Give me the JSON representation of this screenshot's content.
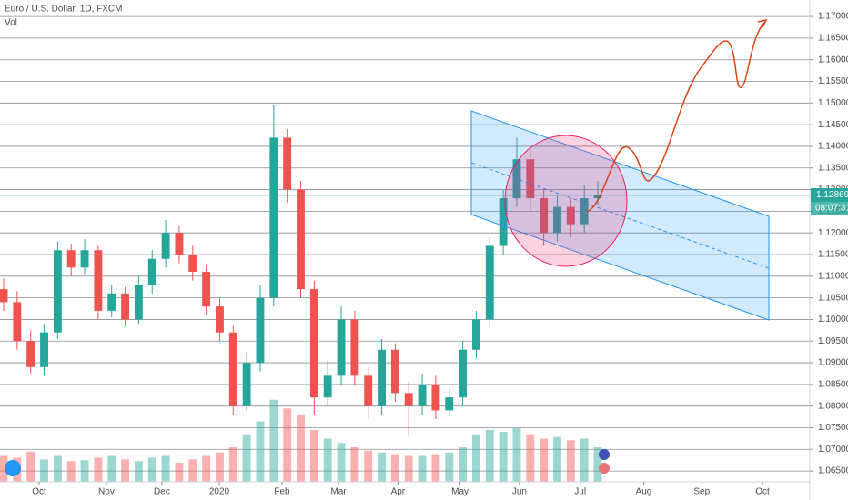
{
  "chart_data": {
    "type": "candlestick",
    "title": "Euro / U.S. Dollar, 1D, FXCM",
    "volume_label": "Vol",
    "last_price_label": "1.12869",
    "countdown": "08:07:31",
    "up_color": "#26a69a",
    "down_color": "#ef5350",
    "open": [
      1.107,
      1.104,
      1.095,
      1.089,
      1.097,
      1.116,
      1.112,
      1.116,
      1.102,
      1.106,
      1.1,
      1.108,
      1.114,
      1.12,
      1.115,
      1.111,
      1.103,
      1.097,
      1.08,
      1.09,
      1.105,
      1.142,
      1.13,
      1.107,
      1.082,
      1.087,
      1.1,
      1.087,
      1.08,
      1.093,
      1.083,
      1.08,
      1.085,
      1.079,
      1.082,
      1.093,
      1.1,
      1.117,
      1.128,
      1.137,
      1.128,
      1.12,
      1.126,
      1.122,
      1.128
    ],
    "high": [
      1.1095,
      1.1065,
      1.0975,
      1.099,
      1.118,
      1.1175,
      1.1185,
      1.117,
      1.108,
      1.1075,
      1.11,
      1.116,
      1.123,
      1.1215,
      1.117,
      1.1125,
      1.105,
      1.0985,
      1.0925,
      1.108,
      1.1495,
      1.144,
      1.132,
      1.109,
      1.0905,
      1.103,
      1.102,
      1.089,
      1.0955,
      1.0945,
      1.0855,
      1.0875,
      1.087,
      1.084,
      1.095,
      1.102,
      1.119,
      1.13,
      1.142,
      1.139,
      1.13,
      1.1285,
      1.128,
      1.131,
      1.132
    ],
    "low": [
      1.102,
      1.093,
      1.0875,
      1.087,
      1.0955,
      1.11,
      1.1105,
      1.1,
      1.1005,
      1.0985,
      1.099,
      1.106,
      1.112,
      1.113,
      1.109,
      1.101,
      1.095,
      1.078,
      1.079,
      1.088,
      1.103,
      1.127,
      1.105,
      1.078,
      1.08,
      1.085,
      1.085,
      1.077,
      1.078,
      1.081,
      1.073,
      1.078,
      1.077,
      1.0775,
      1.08,
      1.091,
      1.0985,
      1.115,
      1.126,
      1.125,
      1.117,
      1.118,
      1.119,
      1.12,
      1.1265
    ],
    "close": [
      1.104,
      1.095,
      1.089,
      1.097,
      1.116,
      1.112,
      1.116,
      1.102,
      1.106,
      1.1,
      1.108,
      1.114,
      1.12,
      1.115,
      1.111,
      1.103,
      1.097,
      1.08,
      1.09,
      1.105,
      1.142,
      1.13,
      1.107,
      1.082,
      1.087,
      1.1,
      1.087,
      1.08,
      1.093,
      1.083,
      1.08,
      1.085,
      1.079,
      1.082,
      1.093,
      1.1,
      1.117,
      1.128,
      1.137,
      1.128,
      1.12,
      1.126,
      1.122,
      1.128,
      1.1287
    ],
    "volume": [
      30,
      28,
      35,
      26,
      30,
      24,
      25,
      28,
      30,
      26,
      24,
      28,
      30,
      22,
      26,
      30,
      34,
      40,
      55,
      70,
      95,
      85,
      78,
      60,
      50,
      45,
      40,
      36,
      34,
      32,
      30,
      30,
      32,
      34,
      40,
      55,
      60,
      58,
      62,
      55,
      50,
      52,
      48,
      50,
      40
    ],
    "xlim": [
      -0.27,
      59.7
    ],
    "xticks": [
      {
        "value": 2.63,
        "label": "Oct"
      },
      {
        "value": 7.61,
        "label": "Nov"
      },
      {
        "value": 11.72,
        "label": "Dec"
      },
      {
        "value": 15.97,
        "label": "2020"
      },
      {
        "value": 20.62,
        "label": "Feb"
      },
      {
        "value": 24.8,
        "label": "Mar"
      },
      {
        "value": 29.2,
        "label": "Apr"
      },
      {
        "value": 33.8,
        "label": "May"
      },
      {
        "value": 38.2,
        "label": "Jun"
      },
      {
        "value": 42.7,
        "label": "Jul"
      },
      {
        "value": 47.4,
        "label": "Aug"
      },
      {
        "value": 51.7,
        "label": "Sep"
      },
      {
        "value": 56.2,
        "label": "Oct"
      }
    ],
    "ylim": [
      1.0625,
      1.1738
    ],
    "yticks": [
      {
        "value": 1.065,
        "label": "1.06500"
      },
      {
        "value": 1.07,
        "label": "1.07000"
      },
      {
        "value": 1.075,
        "label": "1.07500"
      },
      {
        "value": 1.08,
        "label": "1.08000"
      },
      {
        "value": 1.085,
        "label": "1.08500"
      },
      {
        "value": 1.09,
        "label": "1.09000"
      },
      {
        "value": 1.095,
        "label": "1.09500"
      },
      {
        "value": 1.1,
        "label": "1.10000"
      },
      {
        "value": 1.105,
        "label": "1.10500"
      },
      {
        "value": 1.11,
        "label": "1.11000"
      },
      {
        "value": 1.115,
        "label": "1.11500"
      },
      {
        "value": 1.12,
        "label": "1.12000"
      },
      {
        "value": 1.125,
        "label": "1.12500"
      },
      {
        "value": 1.13,
        "label": "1.13000"
      },
      {
        "value": 1.135,
        "label": "1.13500"
      },
      {
        "value": 1.14,
        "label": "1.14000"
      },
      {
        "value": 1.145,
        "label": "1.14500"
      },
      {
        "value": 1.15,
        "label": "1.15000"
      },
      {
        "value": 1.155,
        "label": "1.15500"
      },
      {
        "value": 1.16,
        "label": "1.16000"
      },
      {
        "value": 1.165,
        "label": "1.16500"
      },
      {
        "value": 1.17,
        "label": "1.17000"
      }
    ],
    "grid": true
  }
}
